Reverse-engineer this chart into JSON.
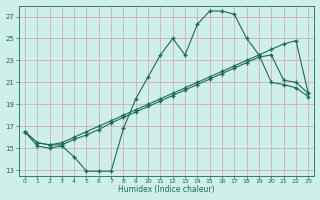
{
  "xlabel": "Humidex (Indice chaleur)",
  "bg_color": "#cff0ea",
  "grid_color": "#d4a0a8",
  "line_color": "#1a6b5a",
  "xlim": [
    -0.5,
    23.5
  ],
  "ylim": [
    12.5,
    28.0
  ],
  "xticks": [
    0,
    1,
    2,
    3,
    4,
    5,
    6,
    7,
    8,
    9,
    10,
    11,
    12,
    13,
    14,
    15,
    16,
    17,
    18,
    19,
    20,
    21,
    22,
    23
  ],
  "yticks": [
    13,
    15,
    17,
    19,
    21,
    23,
    25,
    27
  ],
  "line1_x": [
    0,
    1,
    2,
    3,
    4,
    5,
    6,
    7,
    8,
    9,
    10,
    11,
    12,
    13,
    14,
    15,
    16,
    17,
    18,
    19,
    20,
    21,
    22,
    23
  ],
  "line1_y": [
    16.5,
    15.2,
    15.0,
    15.2,
    14.2,
    12.9,
    12.9,
    12.9,
    16.8,
    19.5,
    21.5,
    23.5,
    25.0,
    23.5,
    26.3,
    27.5,
    27.5,
    27.2,
    25.0,
    23.5,
    21.0,
    20.8,
    20.5,
    19.7
  ],
  "line2_x": [
    0,
    1,
    2,
    3,
    4,
    5,
    6,
    7,
    8,
    9,
    10,
    11,
    12,
    13,
    14,
    15,
    16,
    17,
    18,
    19,
    20,
    21,
    22,
    23
  ],
  "line2_y": [
    16.5,
    15.5,
    15.3,
    15.3,
    15.8,
    16.2,
    16.7,
    17.3,
    17.8,
    18.3,
    18.8,
    19.3,
    19.8,
    20.3,
    20.8,
    21.3,
    21.8,
    22.3,
    22.8,
    23.3,
    23.5,
    21.2,
    21.0,
    20.0
  ],
  "line3_x": [
    0,
    1,
    2,
    3,
    4,
    5,
    6,
    7,
    8,
    9,
    10,
    11,
    12,
    13,
    14,
    15,
    16,
    17,
    18,
    19,
    20,
    21,
    22,
    23
  ],
  "line3_y": [
    16.5,
    15.5,
    15.3,
    15.5,
    16.0,
    16.5,
    17.0,
    17.5,
    18.0,
    18.5,
    19.0,
    19.5,
    20.0,
    20.5,
    21.0,
    21.5,
    22.0,
    22.5,
    23.0,
    23.5,
    24.0,
    24.5,
    24.8,
    20.0
  ]
}
